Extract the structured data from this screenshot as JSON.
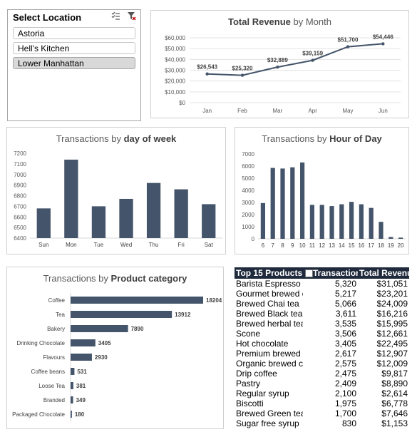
{
  "slicer": {
    "title": "Select Location",
    "items": [
      {
        "label": "Astoria",
        "selected": false
      },
      {
        "label": "Hell's Kitchen",
        "selected": false
      },
      {
        "label": "Lower Manhattan",
        "selected": true
      }
    ],
    "icons": [
      "multi-select-icon",
      "clear-filter-icon"
    ]
  },
  "chart_data": [
    {
      "id": "revenue",
      "type": "line",
      "title_prefix": "Total Revenue",
      "title_suffix": " by Month",
      "categories": [
        "Jan",
        "Feb",
        "Mar",
        "Apr",
        "May",
        "Jun"
      ],
      "values": [
        26543,
        25320,
        32889,
        39159,
        51700,
        54446
      ],
      "data_labels": [
        "$26,543",
        "$25,320",
        "$32,889",
        "$39,159",
        "$51,700",
        "$54,446"
      ],
      "ylim": [
        0,
        60000
      ],
      "yticks": [
        0,
        10000,
        20000,
        30000,
        40000,
        50000,
        60000
      ],
      "ytick_labels": [
        "$0",
        "$10,000",
        "$20,000",
        "$30,000",
        "$40,000",
        "$50,000",
        "$60,000"
      ],
      "color": "#44546a"
    },
    {
      "id": "dow",
      "type": "bar",
      "title_prefix": "Transactions by ",
      "title_suffix": "day of week",
      "categories": [
        "Sun",
        "Mon",
        "Tue",
        "Wed",
        "Thu",
        "Fri",
        "Sat"
      ],
      "values": [
        6680,
        7140,
        6700,
        6770,
        6920,
        6860,
        6720
      ],
      "ylim": [
        6400,
        7200
      ],
      "yticks": [
        6400,
        6500,
        6600,
        6700,
        6800,
        6900,
        7000,
        7100,
        7200
      ],
      "color": "#44546a"
    },
    {
      "id": "hour",
      "type": "bar",
      "title_prefix": "Transactions by ",
      "title_suffix": "Hour of Day",
      "categories": [
        "6",
        "7",
        "8",
        "9",
        "10",
        "11",
        "12",
        "13",
        "14",
        "15",
        "16",
        "17",
        "18",
        "19",
        "20"
      ],
      "values": [
        2950,
        5850,
        5800,
        5900,
        6300,
        2800,
        2800,
        2700,
        2850,
        3050,
        2850,
        2550,
        1400,
        150,
        100
      ],
      "ylim": [
        0,
        7000
      ],
      "yticks": [
        0,
        1000,
        2000,
        3000,
        4000,
        5000,
        6000,
        7000
      ],
      "color": "#44546a"
    },
    {
      "id": "product",
      "type": "bar",
      "orientation": "horizontal",
      "title_prefix": "Transactions by ",
      "title_suffix": "Product category",
      "categories": [
        "Coffee",
        "Tea",
        "Bakery",
        "Drinking Chocolate",
        "Flavours",
        "Coffee beans",
        "Loose Tea",
        "Branded",
        "Packaged Chocolate"
      ],
      "values": [
        18204,
        13912,
        7890,
        3405,
        2930,
        531,
        381,
        349,
        180
      ],
      "xlim": [
        0,
        18204
      ],
      "color": "#44546a"
    }
  ],
  "top_products": {
    "headers": [
      "Top 15 Products",
      "Transactions",
      "Total Revenue"
    ],
    "rows": [
      [
        "Barista Espresso",
        "5,320",
        "$31,051"
      ],
      [
        "Gourmet brewed coffee",
        "5,217",
        "$23,201"
      ],
      [
        "Brewed Chai tea",
        "5,066",
        "$24,009"
      ],
      [
        "Brewed Black tea",
        "3,611",
        "$16,216"
      ],
      [
        "Brewed herbal tea",
        "3,535",
        "$15,995"
      ],
      [
        "Scone",
        "3,506",
        "$12,661"
      ],
      [
        "Hot chocolate",
        "3,405",
        "$22,495"
      ],
      [
        "Premium brewed coffee",
        "2,617",
        "$12,907"
      ],
      [
        "Organic brewed coffee",
        "2,575",
        "$12,009"
      ],
      [
        "Drip coffee",
        "2,475",
        "$9,817"
      ],
      [
        "Pastry",
        "2,409",
        "$8,890"
      ],
      [
        "Regular syrup",
        "2,100",
        "$2,614"
      ],
      [
        "Biscotti",
        "1,975",
        "$6,778"
      ],
      [
        "Brewed Green tea",
        "1,700",
        "$7,646"
      ],
      [
        "Sugar free syrup",
        "830",
        "$1,153"
      ]
    ]
  }
}
